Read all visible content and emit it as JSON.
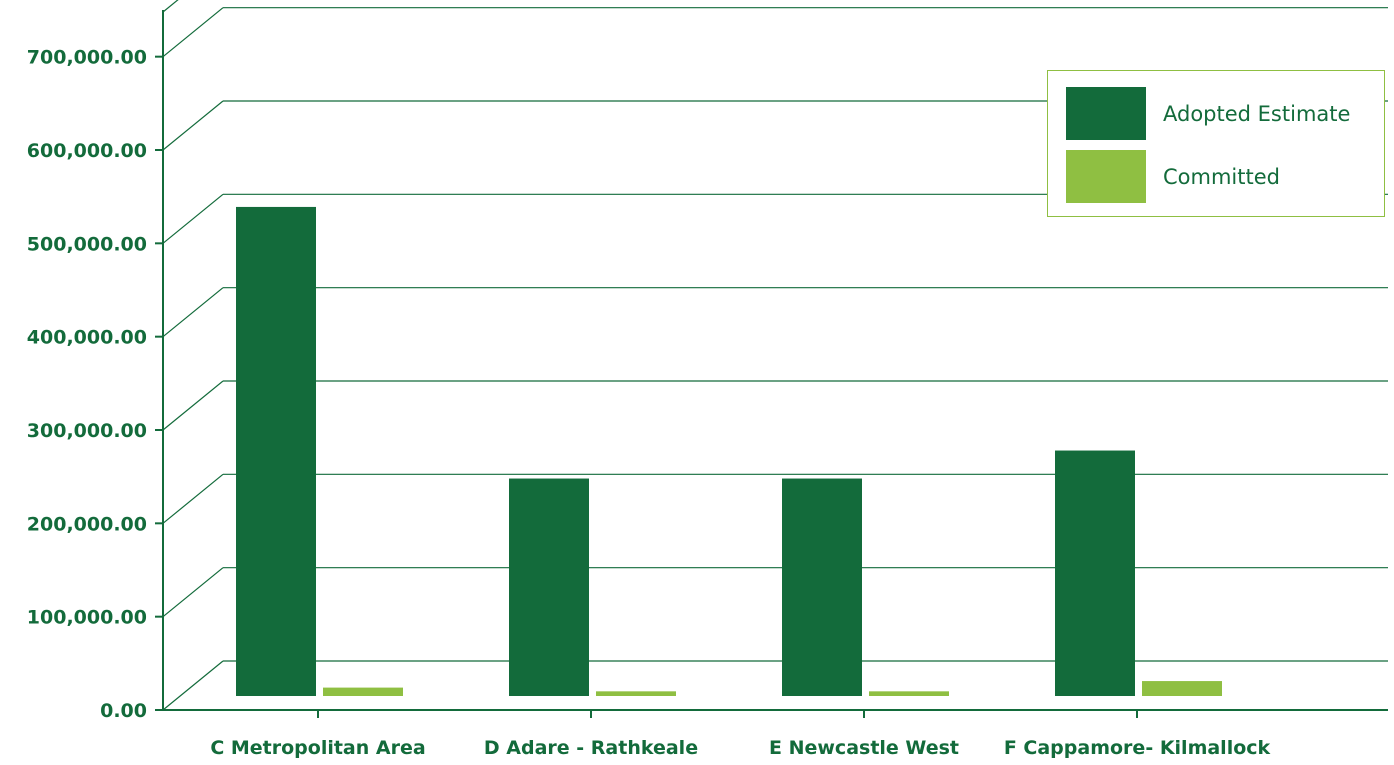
{
  "chart_data": {
    "type": "bar",
    "categories": [
      "C Metropolitan Area",
      "D Adare - Rathkeale",
      "E Newcastle West",
      "F Cappamore- Kilmallock"
    ],
    "series": [
      {
        "name": "Adopted Estimate",
        "values": [
          524000,
          233000,
          233000,
          263000
        ]
      },
      {
        "name": "Committed",
        "values": [
          9000,
          5000,
          5000,
          16000
        ]
      }
    ],
    "yticks": [
      "0.00",
      "100,000.00",
      "200,000.00",
      "300,000.00",
      "400,000.00",
      "500,000.00",
      "600,000.00",
      "700,000.00"
    ],
    "ylim": [
      0,
      750000
    ],
    "grid": true,
    "legend_position": "top-right",
    "colors": {
      "Adopted Estimate": "#136b3b",
      "Committed": "#8fbf42",
      "axis": "#136b3b",
      "text": "#136b3b"
    }
  }
}
